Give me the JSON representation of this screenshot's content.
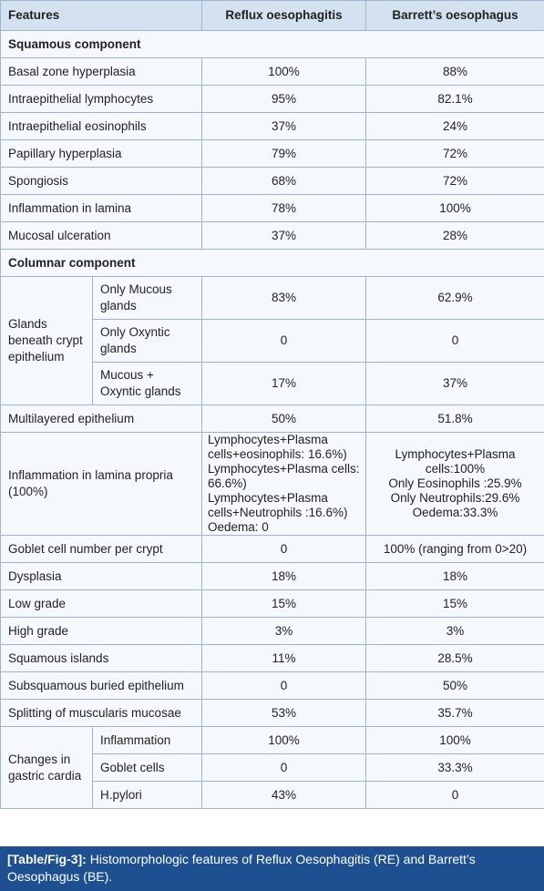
{
  "table": {
    "header": [
      "Features",
      "Reflux oesophagitis",
      "Barrett’s oesophagus"
    ],
    "rows": [
      {
        "section": "Squamous component"
      },
      [
        "Basal zone hyperplasia",
        "100%",
        "88%"
      ],
      [
        "Intraepithelial lymphocytes",
        "95%",
        "82.1%"
      ],
      [
        "Intraepithelial eosinophils",
        "37%",
        "24%"
      ],
      [
        "Papillary hyperplasia",
        "79%",
        "72%"
      ],
      [
        "Spongiosis",
        "68%",
        "72%"
      ],
      [
        "Inflammation in lamina",
        "78%",
        "100%"
      ],
      [
        "Mucosal ulceration",
        "37%",
        "28%"
      ],
      {
        "section": "Columnar component"
      },
      {
        "group": "Glands beneath crypt epithelium",
        "rows": [
          [
            "Only Mucous glands",
            "83%",
            "62.9%"
          ],
          [
            "Only Oxyntic glands",
            "0",
            "0"
          ],
          [
            "Mucous + Oxyntic glands",
            "17%",
            "37%"
          ]
        ]
      },
      [
        "Multilayered epithelium",
        "50%",
        "51.8%"
      ],
      [
        "Inflammation in lamina propria (100%)",
        [
          "Lymphocytes+Plasma cells+eosinophils: 16.6%)",
          "Lymphocytes+Plasma cells: 66.6%)",
          "Lymphocytes+Plasma cells+Neutrophils :16.6%)",
          "Oedema: 0"
        ],
        [
          "Lymphocytes+Plasma cells:100%",
          "Only Eosinophils :25.9%",
          "Only Neutrophils:29.6%",
          "Oedema:33.3%"
        ]
      ],
      [
        "Goblet cell number per crypt",
        "0",
        "100% (ranging from 0>20)"
      ],
      [
        "Dysplasia",
        "18%",
        "18%"
      ],
      [
        "Low grade",
        "15%",
        "15%"
      ],
      [
        "High grade",
        "3%",
        "3%"
      ],
      [
        "Squamous islands",
        "11%",
        "28.5%"
      ],
      [
        "Subsquamous buried epithelium",
        "0",
        "50%"
      ],
      [
        "Splitting of muscularis mucosae",
        "53%",
        "35.7%"
      ],
      {
        "group": "Changes in gastric cardia",
        "rows": [
          [
            "Inflammation",
            "100%",
            "100%"
          ],
          [
            "Goblet cells",
            "0",
            "33.3%"
          ],
          [
            "H.pylori",
            "43%",
            "0"
          ]
        ]
      }
    ]
  },
  "caption": {
    "label": "[Table/Fig-3]:",
    "text": "Histomorphologic features of Reflux Oesophagitis (RE) and Barrett’s Oesophagus (BE)."
  }
}
